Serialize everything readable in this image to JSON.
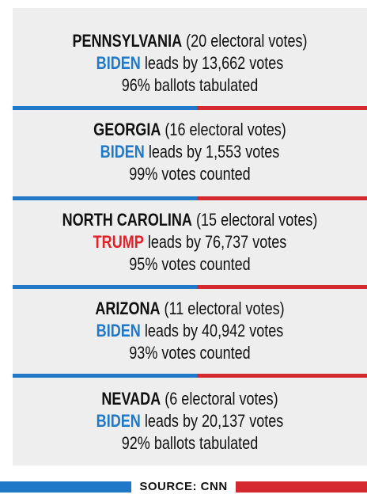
{
  "colors": {
    "biden_blue": "#1f78c8",
    "trump_red": "#e02128",
    "panel_background": "#eeeeee"
  },
  "states": [
    {
      "state": "PENNSYLVANIA",
      "electoral": "(20 electoral votes)",
      "leader": "BIDEN",
      "lead_text": "leads by 13,662 votes",
      "status": "96% ballots tabulated"
    },
    {
      "state": "GEORGIA",
      "electoral": "(16 electoral votes)",
      "leader": "BIDEN",
      "lead_text": "leads by 1,553 votes",
      "status": "99% votes counted"
    },
    {
      "state": "NORTH CAROLINA",
      "electoral": "(15 electoral votes)",
      "leader": "TRUMP",
      "lead_text": "leads by 76,737 votes",
      "status": "95% votes counted"
    },
    {
      "state": "ARIZONA",
      "electoral": "(11 electoral votes)",
      "leader": "BIDEN",
      "lead_text": "leads by 40,942 votes",
      "status": "93% votes counted"
    },
    {
      "state": "NEVADA",
      "electoral": "(6 electoral votes)",
      "leader": "BIDEN",
      "lead_text": "leads by 20,137 votes",
      "status": "92% ballots tabulated"
    }
  ],
  "footer": {
    "source": "SOURCE: CNN"
  }
}
